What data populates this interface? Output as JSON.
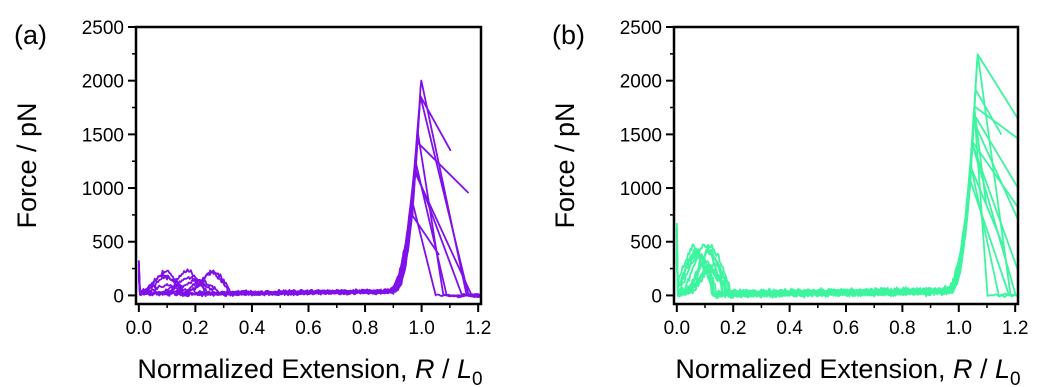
{
  "chart_data": [
    {
      "type": "line",
      "panel_label": "(a)",
      "xlabel_prefix": "Normalized Extension, ",
      "xlabel_var": "R",
      "xlabel_sep": " / ",
      "xlabel_var2": "L",
      "xlabel_sub": "0",
      "ylabel": "Force / pN",
      "xlim": [
        -0.01,
        1.21
      ],
      "ylim": [
        -80,
        2500
      ],
      "xticks": [
        "0.0",
        "0.2",
        "0.4",
        "0.6",
        "0.8",
        "1.0",
        "1.2"
      ],
      "yticks": [
        "0",
        "500",
        "1000",
        "1500",
        "2000",
        "2500"
      ],
      "color": "#7f10e8",
      "grid": false,
      "legend": "none",
      "peak_force": 2050,
      "rupture_extension": 0.95
    },
    {
      "type": "line",
      "panel_label": "(b)",
      "xlabel_prefix": "Normalized Extension, ",
      "xlabel_var": "R",
      "xlabel_sep": " / ",
      "xlabel_var2": "L",
      "xlabel_sub": "0",
      "ylabel": "Force / pN",
      "xlim": [
        -0.01,
        1.21
      ],
      "ylim": [
        -80,
        2500
      ],
      "xticks": [
        "0.0",
        "0.2",
        "0.4",
        "0.6",
        "0.8",
        "1.0",
        "1.2"
      ],
      "yticks": [
        "0",
        "500",
        "1000",
        "1500",
        "2000",
        "2500"
      ],
      "color": "#3ef59f",
      "grid": false,
      "legend": "none",
      "peak_force": 2380,
      "rupture_extension": 1.02
    }
  ]
}
